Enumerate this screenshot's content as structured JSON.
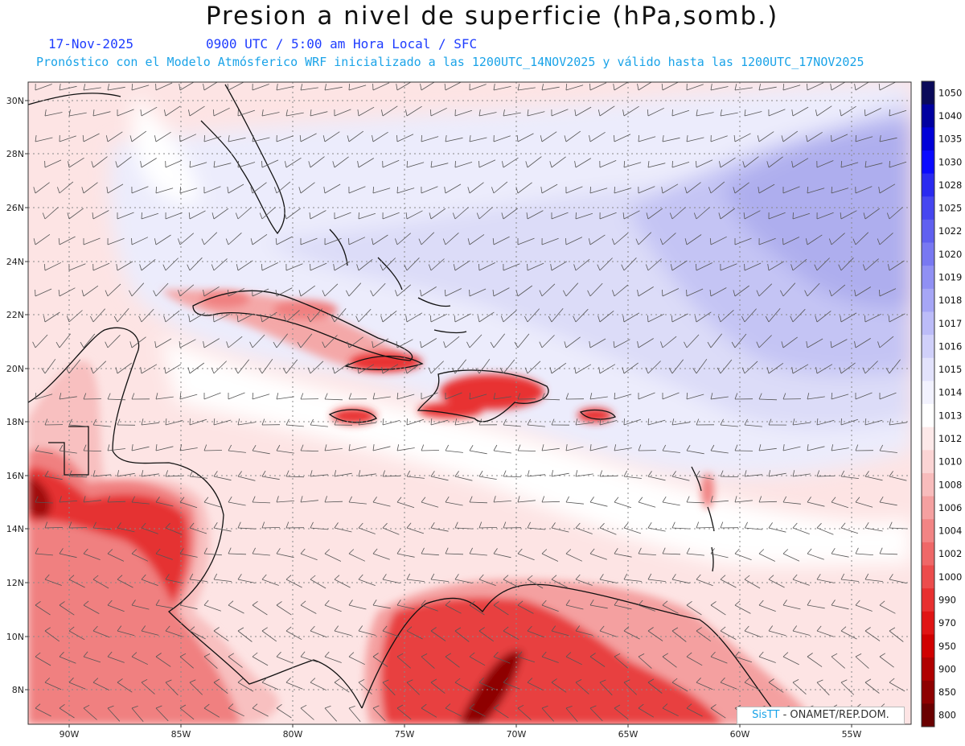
{
  "title": "Presion a nivel de superficie (hPa,somb.)",
  "date": "17-Nov-2025",
  "valid_time": "0900 UTC / 5:00 am Hora Local / SFC",
  "forecast_note": "Pronóstico con el Modelo Atmósferico WRF inicializado a las 1200UTC_14NOV2025 y válido hasta las  1200UTC_17NOV2025",
  "lat_labels": [
    "30N",
    "28N",
    "26N",
    "24N",
    "22N",
    "20N",
    "18N",
    "16N",
    "14N",
    "12N",
    "10N",
    "8N"
  ],
  "lon_labels": [
    "90W",
    "85W",
    "80W",
    "75W",
    "70W",
    "65W",
    "60W",
    "55W"
  ],
  "colorbar": {
    "labels": [
      "1050",
      "1040",
      "1035",
      "1030",
      "1028",
      "1025",
      "1022",
      "1020",
      "1019",
      "1018",
      "1017",
      "1016",
      "1015",
      "1014",
      "1013",
      "1012",
      "1010",
      "1008",
      "1006",
      "1004",
      "1002",
      "1000",
      "990",
      "970",
      "950",
      "900",
      "850",
      "800"
    ],
    "colors": [
      "#0a0a5a",
      "#0000a0",
      "#0000d8",
      "#0a0aff",
      "#2a2af0",
      "#4646f0",
      "#6060f0",
      "#7878f2",
      "#9090f4",
      "#a6a6f6",
      "#bcbcf8",
      "#d0d0fa",
      "#e2e2fc",
      "#f2f2fe",
      "#ffffff",
      "#fde9e9",
      "#fbd4d4",
      "#f8bcbc",
      "#f5a0a0",
      "#f28484",
      "#ef6868",
      "#ec4c4c",
      "#e83030",
      "#e01414",
      "#d00000",
      "#b00000",
      "#8e0000",
      "#6a0000"
    ]
  },
  "credit_brand": "SisTT",
  "credit_text": " - ONAMET/REP.DOM."
}
